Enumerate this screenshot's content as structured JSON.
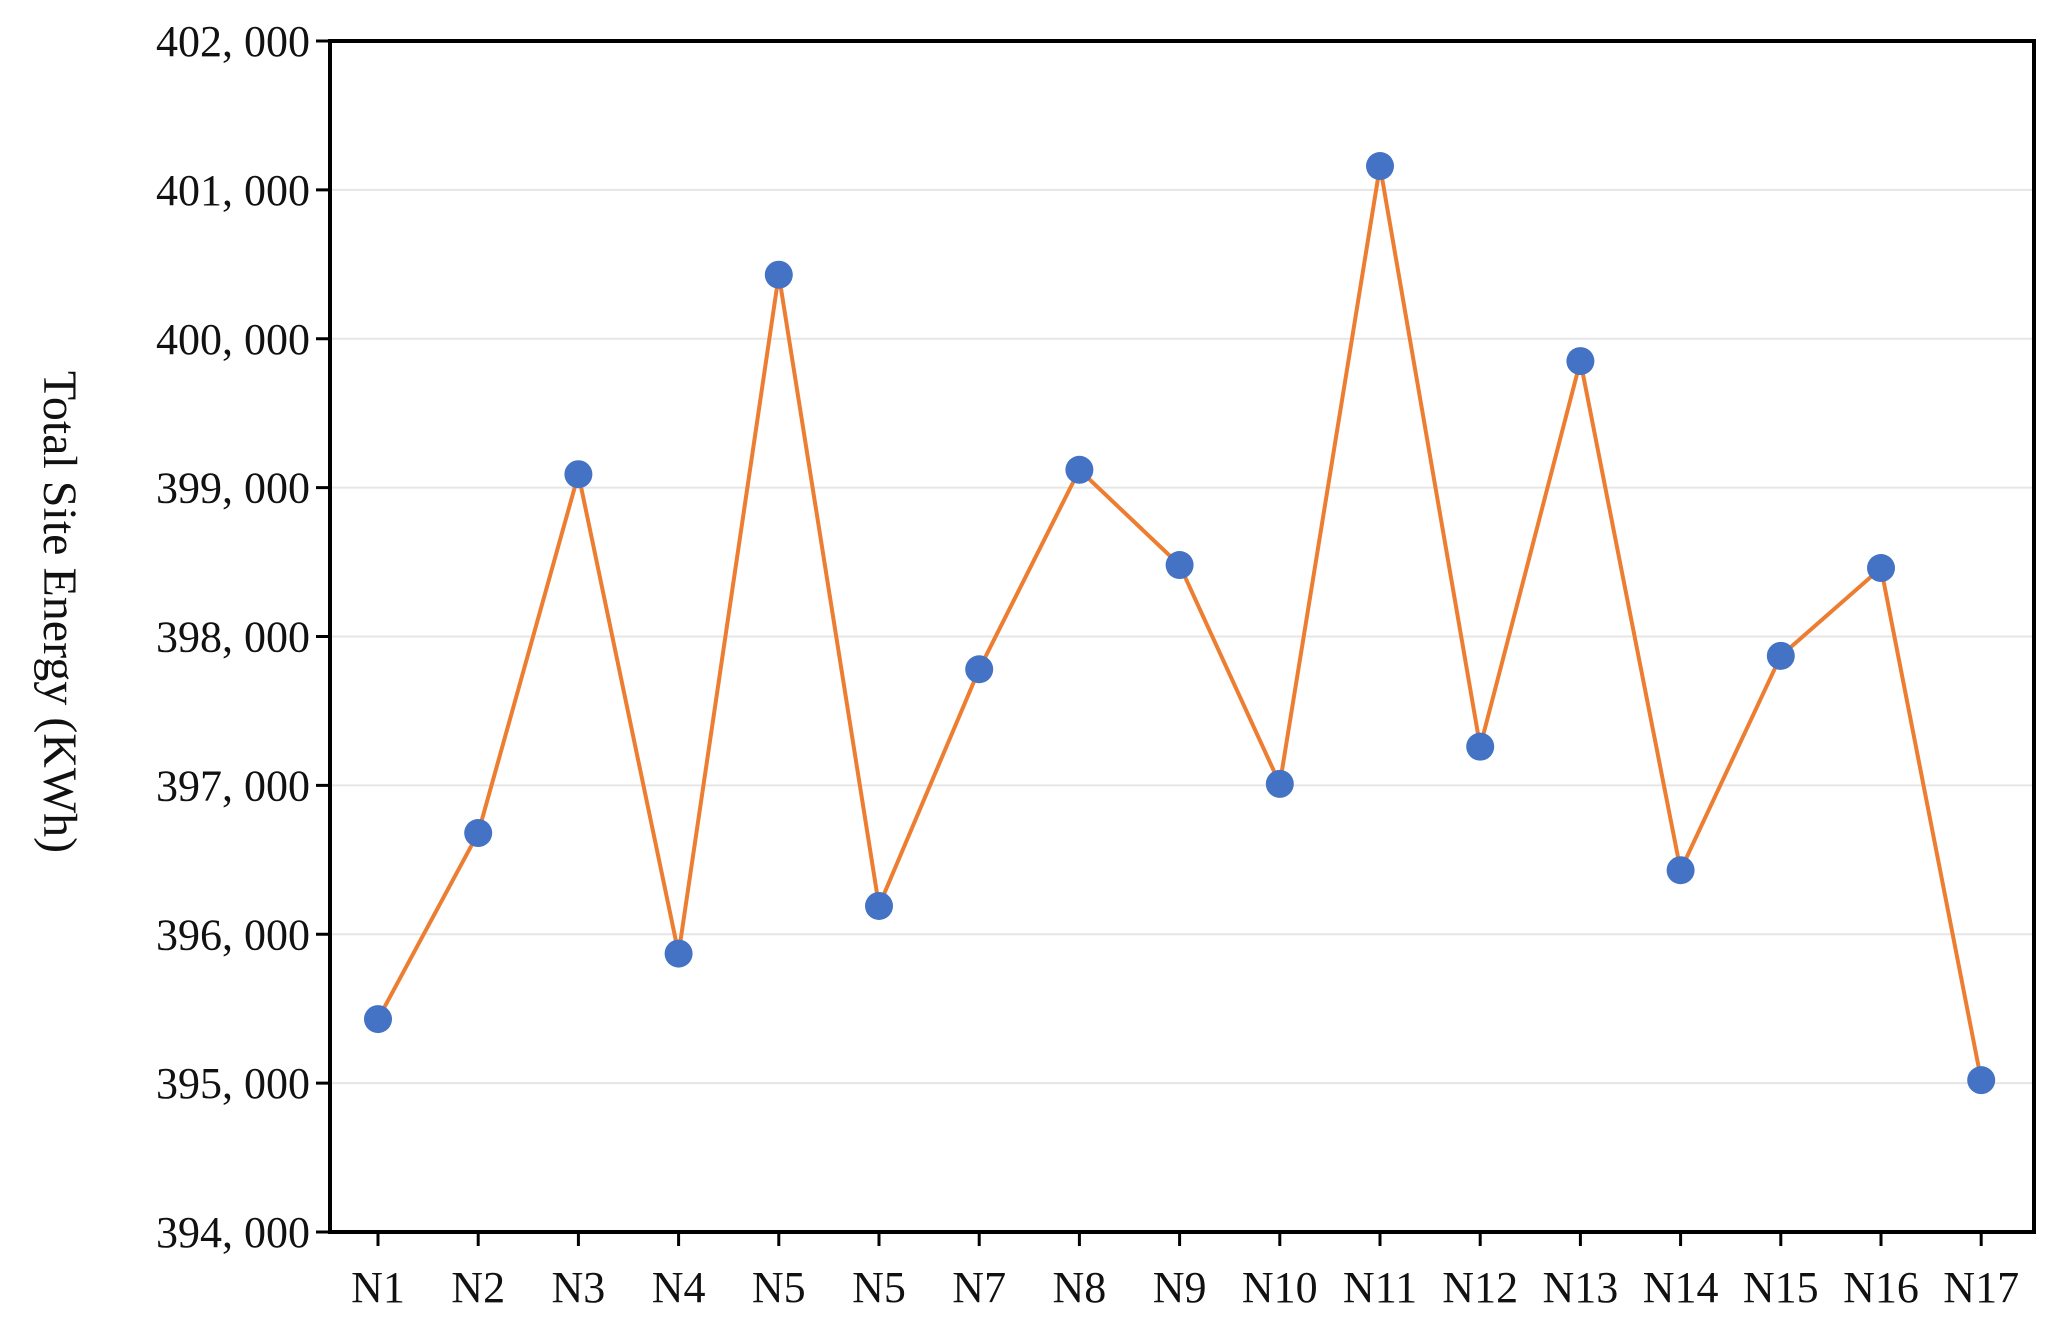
{
  "chart_data": {
    "type": "line",
    "title": "",
    "xlabel": "",
    "ylabel": "Total Site Energy (KWh)",
    "categories": [
      "N1",
      "N2",
      "N3",
      "N4",
      "N5",
      "N5",
      "N7",
      "N8",
      "N9",
      "N10",
      "N11",
      "N12",
      "N13",
      "N14",
      "N15",
      "N16",
      "N17"
    ],
    "series": [
      {
        "values": [
          395430,
          396680,
          399090,
          395870,
          400430,
          396190,
          397780,
          399120,
          398480,
          397010,
          401160,
          397260,
          399850,
          396430,
          397870,
          398460,
          395020
        ]
      }
    ],
    "ylim": [
      394000,
      402000
    ],
    "yticks": [
      394000,
      395000,
      396000,
      397000,
      398000,
      399000,
      400000,
      401000,
      402000
    ],
    "ytick_labels": [
      "394, 000",
      "395, 000",
      "396, 000",
      "397, 000",
      "398, 000",
      "399, 000",
      "400, 000",
      "401, 000",
      "402, 000"
    ],
    "grid": true,
    "legend": "none",
    "colors": {
      "line": "#ED7D31",
      "marker": "#4472C4",
      "grid": "#E6E6E6",
      "axis": "#000000"
    }
  }
}
